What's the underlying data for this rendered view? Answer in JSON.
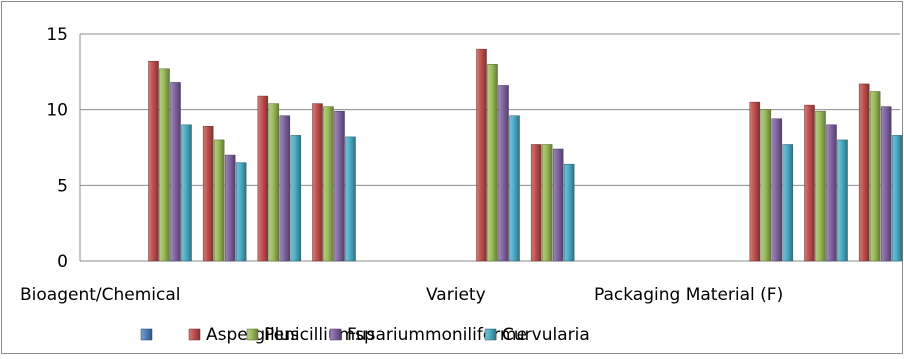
{
  "chart_data": {
    "type": "bar",
    "title": "",
    "xlabel": "",
    "ylabel": "",
    "ylim": [
      0,
      15
    ],
    "yticks": [
      0,
      5,
      10,
      15
    ],
    "grid": true,
    "legend_position": "bottom",
    "category_labels": [
      "Bioagent/Chemical",
      "Variety",
      "Packaging Material (F)"
    ],
    "categories": [
      "",
      "",
      "",
      "",
      "",
      "",
      "",
      "",
      "",
      "",
      "",
      "",
      "",
      "",
      ""
    ],
    "legend_entries": [
      "",
      "Aspergillus",
      "Penicilliumsp",
      "Fusariummoniliforme",
      "Curvularia"
    ],
    "series": [
      {
        "name": "",
        "color": "#4F81BD",
        "values": [
          0,
          0,
          0,
          0,
          0,
          0,
          0,
          0,
          0,
          0,
          0,
          0,
          0,
          0,
          0
        ]
      },
      {
        "name": "Aspergillus",
        "color": "#C0504D",
        "values": [
          0,
          13.2,
          8.9,
          10.9,
          10.4,
          0,
          0,
          14.0,
          7.7,
          0,
          0,
          0,
          10.5,
          10.3,
          11.7
        ]
      },
      {
        "name": "Penicilliumsp",
        "color": "#9BBB59",
        "values": [
          0,
          12.7,
          8.0,
          10.4,
          10.2,
          0,
          0,
          13.0,
          7.7,
          0,
          0,
          0,
          10.0,
          9.9,
          11.2
        ]
      },
      {
        "name": "Fusariummoniliforme",
        "color": "#8064A2",
        "values": [
          0,
          11.8,
          7.0,
          9.6,
          9.9,
          0,
          0,
          11.6,
          7.4,
          0,
          0,
          0,
          9.4,
          9.0,
          10.2
        ]
      },
      {
        "name": "Curvularia",
        "color": "#4BACC6",
        "values": [
          0,
          9.0,
          6.5,
          8.3,
          8.2,
          0,
          0,
          9.6,
          6.4,
          0,
          0,
          0,
          7.7,
          8.0,
          8.3
        ]
      }
    ]
  }
}
